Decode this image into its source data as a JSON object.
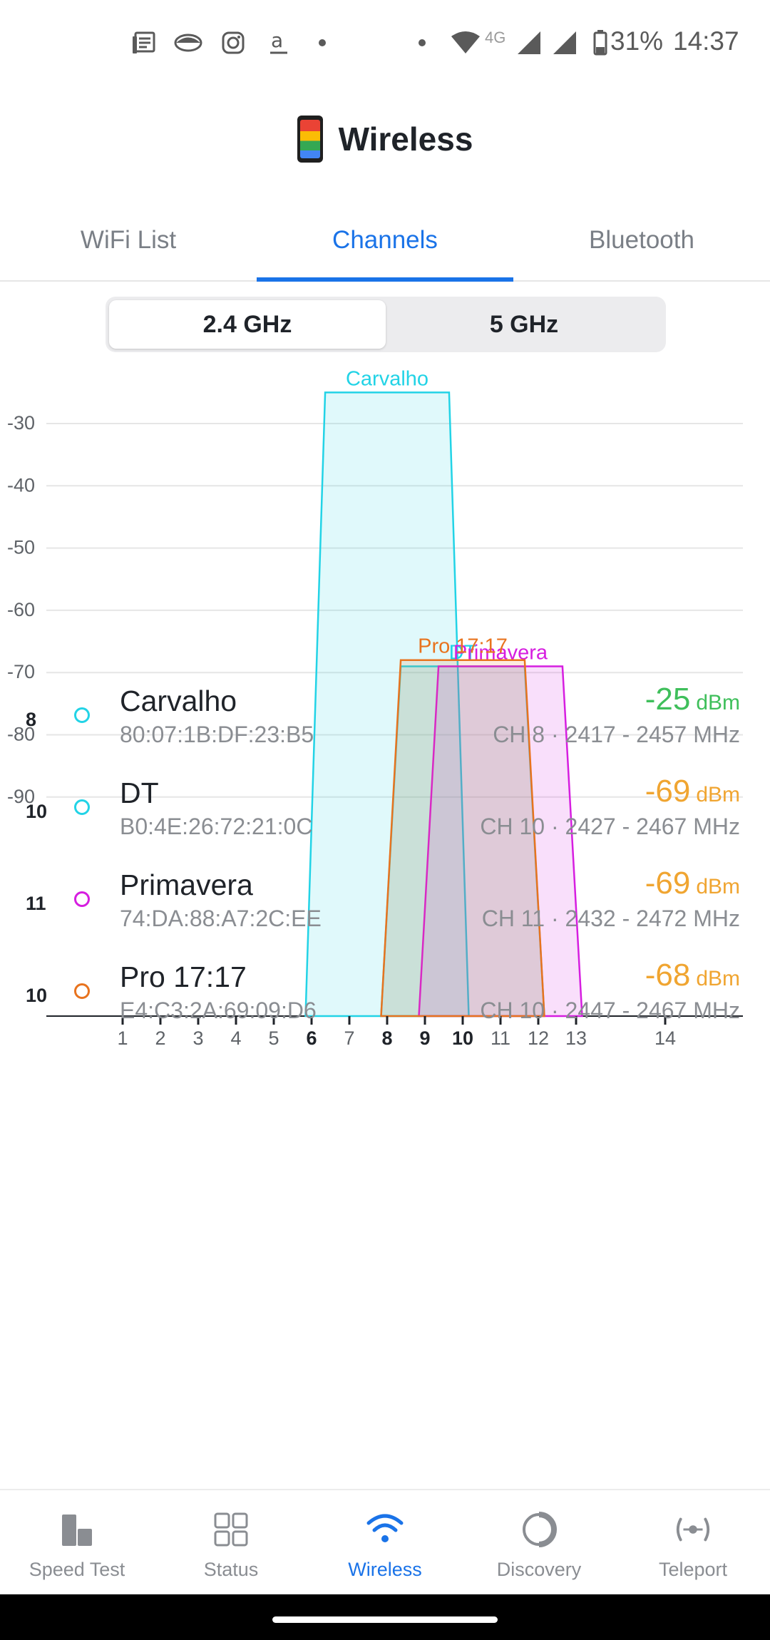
{
  "status_bar": {
    "battery": "31%",
    "time": "14:37",
    "network": "4G",
    "icons": [
      "news-icon",
      "eye-icon",
      "instagram-icon",
      "amazon-icon",
      "dot-icon",
      "dot-icon",
      "wifi-icon",
      "cell-signal-icon",
      "cell-signal-icon",
      "battery-icon"
    ]
  },
  "header": {
    "title": "Wireless",
    "icon": "phone-icon"
  },
  "tabs": [
    {
      "label": "WiFi List",
      "active": false
    },
    {
      "label": "Channels",
      "active": true
    },
    {
      "label": "Bluetooth",
      "active": false
    }
  ],
  "band_toggle": [
    {
      "label": "2.4 GHz",
      "active": true
    },
    {
      "label": "5 GHz",
      "active": false
    }
  ],
  "chart_data": {
    "type": "area",
    "ylim": [
      -95,
      -25
    ],
    "y_ticks": [
      -30,
      -40,
      -50,
      -60,
      -70,
      -80,
      -90
    ],
    "x_ticks": [
      "1",
      "2",
      "3",
      "4",
      "5",
      "6",
      "7",
      "8",
      "9",
      "10",
      "11",
      "12",
      "13",
      "14"
    ],
    "bold_x_ticks": [
      "6",
      "8",
      "9",
      "10"
    ],
    "series": [
      {
        "name": "Carvalho",
        "channel": 8,
        "signal": -25,
        "color": "#22d3e6"
      },
      {
        "name": "DT",
        "channel": 10,
        "signal": -69,
        "color": "#22d3e6"
      },
      {
        "name": "Primavera",
        "channel": 11,
        "signal": -69,
        "color": "#d61ee0"
      },
      {
        "name": "Pro 17:17",
        "channel": 10,
        "signal": -68,
        "color": "#e8731e"
      }
    ]
  },
  "networks": [
    {
      "channel": "8",
      "name": "Carvalho",
      "mac": "80:07:1B:DF:23:B5",
      "signal": "-25",
      "unit": "dBm",
      "detail": "CH 8 · 2417 - 2457 MHz",
      "dot_color": "#22d3e6",
      "signal_color": "#3fbf5b"
    },
    {
      "channel": "10",
      "name": "DT",
      "mac": "B0:4E:26:72:21:0C",
      "signal": "-69",
      "unit": "dBm",
      "detail": "CH 10 · 2427 - 2467 MHz",
      "dot_color": "#22d3e6",
      "signal_color": "#f0a531"
    },
    {
      "channel": "11",
      "name": "Primavera",
      "mac": "74:DA:88:A7:2C:EE",
      "signal": "-69",
      "unit": "dBm",
      "detail": "CH 11 · 2432 - 2472 MHz",
      "dot_color": "#d61ee0",
      "signal_color": "#f0a531"
    },
    {
      "channel": "10",
      "name": "Pro 17:17",
      "mac": "E4:C3:2A:69:09:D6",
      "signal": "-68",
      "unit": "dBm",
      "detail": "CH 10 · 2447 - 2467 MHz",
      "dot_color": "#e8731e",
      "signal_color": "#f0a531"
    }
  ],
  "bottom_nav": [
    {
      "label": "Speed Test",
      "icon": "speed-test-icon",
      "active": false
    },
    {
      "label": "Status",
      "icon": "status-grid-icon",
      "active": false
    },
    {
      "label": "Wireless",
      "icon": "wifi-icon",
      "active": true
    },
    {
      "label": "Discovery",
      "icon": "discovery-icon",
      "active": false
    },
    {
      "label": "Teleport",
      "icon": "teleport-icon",
      "active": false
    }
  ],
  "colors": {
    "accent": "#1a73e8",
    "good_signal": "#3fbf5b",
    "fair_signal": "#f0a531"
  }
}
